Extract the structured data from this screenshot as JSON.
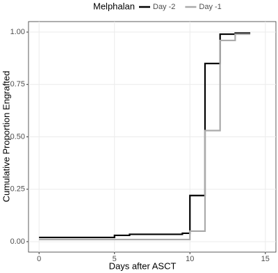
{
  "chart_data": {
    "type": "step",
    "xlabel": "Days after ASCT",
    "ylabel": "Cumulative Proportion Engrafted",
    "legend_title": "Melphalan",
    "legend_position": "top",
    "grid": true,
    "xlim": [
      -0.7,
      15.7
    ],
    "ylim": [
      -0.05,
      1.05
    ],
    "xticks": [
      0,
      5,
      10,
      15
    ],
    "yticks": [
      {
        "value": 0,
        "label": "0.00"
      },
      {
        "value": 0.25,
        "label": "0.25"
      },
      {
        "value": 0.5,
        "label": "0.50"
      },
      {
        "value": 0.75,
        "label": "0.75"
      },
      {
        "value": 1,
        "label": "1.00"
      }
    ],
    "series": [
      {
        "name": "Day -2",
        "color": "#000000",
        "x": [
          0,
          5,
          6,
          9.5,
          10,
          11,
          12,
          13,
          14
        ],
        "values": [
          0.02,
          0.03,
          0.035,
          0.04,
          0.22,
          0.85,
          0.99,
          0.995,
          0.995
        ]
      },
      {
        "name": "Day -1",
        "color": "#aaaaaa",
        "x": [
          0,
          10,
          11,
          12,
          13,
          14
        ],
        "values": [
          0.01,
          0.05,
          0.53,
          0.96,
          0.99,
          0.99
        ]
      }
    ]
  }
}
